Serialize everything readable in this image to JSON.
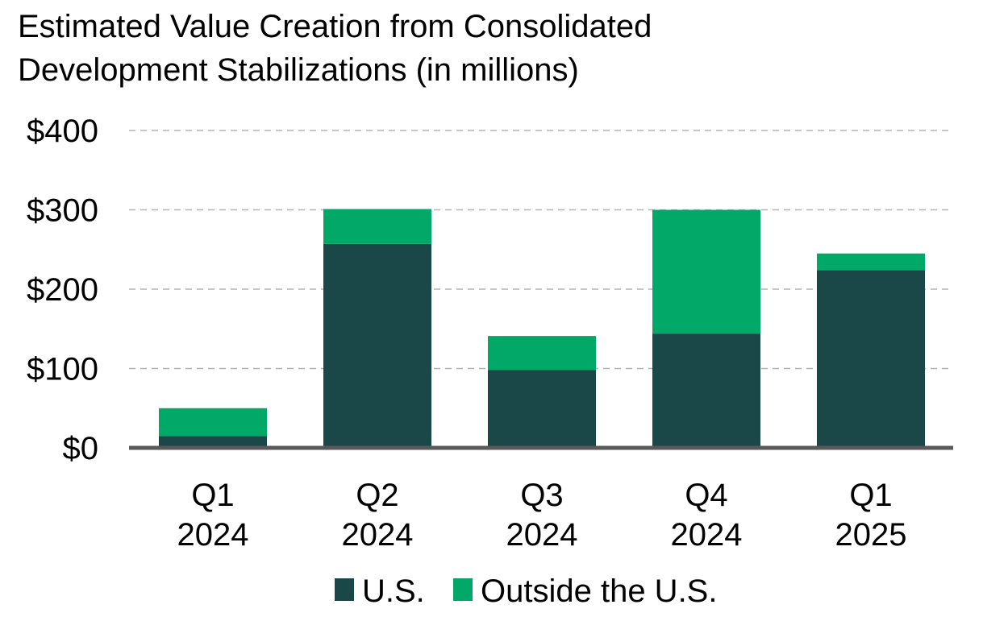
{
  "chart_data": {
    "type": "bar",
    "stacked": true,
    "title": "Estimated Value Creation from Consolidated Development Stabilizations (in millions)",
    "title_lines": [
      "Estimated Value Creation from Consolidated",
      "Development Stabilizations (in millions)"
    ],
    "categories": [
      {
        "quarter": "Q1",
        "year": "2024"
      },
      {
        "quarter": "Q2",
        "year": "2024"
      },
      {
        "quarter": "Q3",
        "year": "2024"
      },
      {
        "quarter": "Q4",
        "year": "2024"
      },
      {
        "quarter": "Q1",
        "year": "2025"
      }
    ],
    "series": [
      {
        "name": "U.S.",
        "color": "#1a4747",
        "values": [
          15,
          257,
          98,
          144,
          224
        ]
      },
      {
        "name": "Outside the U.S.",
        "color": "#02a867",
        "values": [
          35,
          44,
          43,
          156,
          21
        ]
      }
    ],
    "ylim": [
      0,
      400
    ],
    "yticks": [
      {
        "value": 0,
        "label": "$0"
      },
      {
        "value": 100,
        "label": "$100"
      },
      {
        "value": 200,
        "label": "$200"
      },
      {
        "value": 300,
        "label": "$300"
      },
      {
        "value": 400,
        "label": "$400"
      }
    ],
    "xlabel": "",
    "ylabel": "",
    "grid": true,
    "legend_position": "bottom-center"
  }
}
